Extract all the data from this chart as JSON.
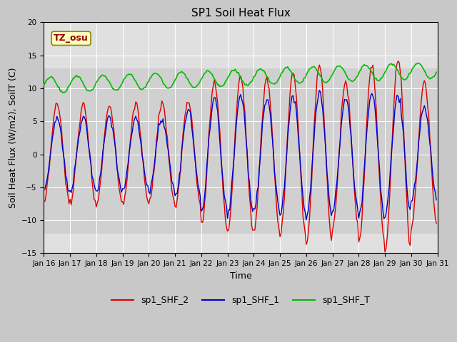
{
  "title": "SP1 Soil Heat Flux",
  "xlabel": "Time",
  "ylabel": "Soil Heat Flux (W/m2), SoilT (C)",
  "ylim": [
    -15,
    20
  ],
  "shf2_color": "#dd0000",
  "shf1_color": "#0000cc",
  "shft_color": "#00bb00",
  "tick_labels": [
    "Jan 16",
    "Jan 17",
    "Jan 18",
    "Jan 19",
    "Jan 20",
    "Jan 21",
    "Jan 22",
    "Jan 23",
    "Jan 24",
    "Jan 25",
    "Jan 26",
    "Jan 27",
    "Jan 28",
    "Jan 29",
    "Jan 30",
    "Jan 31"
  ],
  "legend_labels": [
    "sp1_SHF_2",
    "sp1_SHF_1",
    "sp1_SHF_T"
  ],
  "title_fontsize": 11,
  "label_fontsize": 9,
  "tick_fontsize": 7.5,
  "legend_fontsize": 9,
  "tz_label": "TZ_osu",
  "fig_bg": "#c8c8c8",
  "ax_bg": "#e0e0e0",
  "band_bg": "#d0d0d0"
}
